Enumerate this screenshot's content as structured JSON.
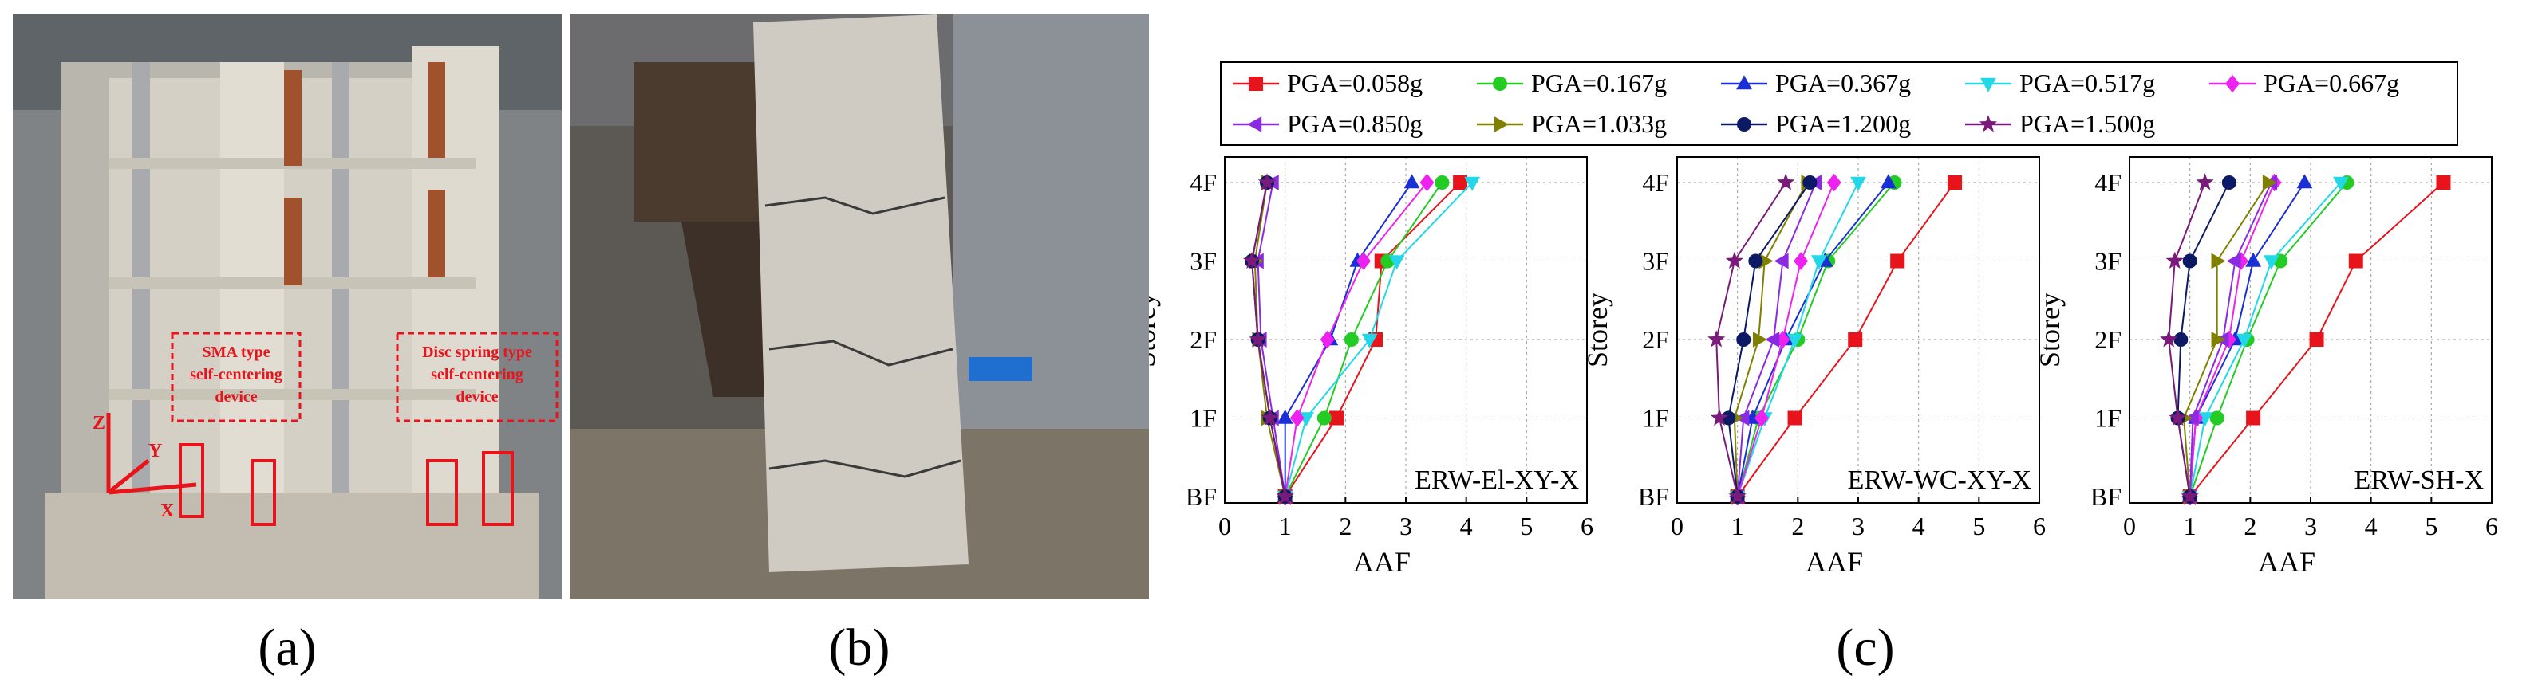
{
  "captions": {
    "a": "(a)",
    "b": "(b)",
    "c": "(c)"
  },
  "photo_a": {
    "labels": {
      "sma_line1": "SMA type",
      "sma_line2": "self-centering",
      "sma_line3": "device",
      "disc_line1": "Disc spring type",
      "disc_line2": "self-centering",
      "disc_line3": "device",
      "axis_x": "X",
      "axis_y": "Y",
      "axis_z": "Z"
    },
    "colors": {
      "annotation": "#e8141c",
      "concrete": "#c9c3b6",
      "steel": "#8d8f93",
      "copper": "#a0522d"
    }
  },
  "photo_b": {
    "colors": {
      "concrete": "#cfcbc2",
      "steel": "#4b3a2e",
      "ground": "#7d7468"
    }
  },
  "chart_data": {
    "type": "line",
    "legend": [
      {
        "name": "PGA=0.058g",
        "color": "#e8141c",
        "marker": "square"
      },
      {
        "name": "PGA=0.167g",
        "color": "#22cc22",
        "marker": "circle"
      },
      {
        "name": "PGA=0.367g",
        "color": "#1a2fd6",
        "marker": "triangle-up"
      },
      {
        "name": "PGA=0.517g",
        "color": "#22d8e8",
        "marker": "triangle-down"
      },
      {
        "name": "PGA=0.667g",
        "color": "#ee22ee",
        "marker": "diamond"
      },
      {
        "name": "PGA=0.850g",
        "color": "#8a2be2",
        "marker": "triangle-left"
      },
      {
        "name": "PGA=1.033g",
        "color": "#808000",
        "marker": "triangle-right"
      },
      {
        "name": "PGA=1.200g",
        "color": "#0c1a66",
        "marker": "hexagon"
      },
      {
        "name": "PGA=1.500g",
        "color": "#7a1a7a",
        "marker": "star"
      }
    ],
    "categories": [
      "BF",
      "1F",
      "2F",
      "3F",
      "4F"
    ],
    "xlabel": "AAF",
    "ylabel": "Storey",
    "xlim": [
      0,
      6
    ],
    "xticks": [
      "0",
      "1",
      "2",
      "3",
      "4",
      "5",
      "6"
    ],
    "grid": true,
    "legend_position": "top",
    "panels": [
      {
        "label": "ERW-El-XY-X",
        "series": [
          [
            1,
            1.85,
            2.5,
            2.6,
            3.9
          ],
          [
            1,
            1.65,
            2.1,
            2.7,
            3.6
          ],
          [
            1,
            1.0,
            1.75,
            2.2,
            3.1
          ],
          [
            1,
            1.35,
            2.4,
            2.85,
            4.1
          ],
          [
            1,
            1.2,
            1.7,
            2.3,
            3.35
          ],
          [
            1,
            0.8,
            0.6,
            0.55,
            0.8
          ],
          [
            1,
            0.7,
            0.55,
            0.5,
            0.7
          ],
          [
            1,
            0.75,
            0.55,
            0.45,
            0.7
          ],
          [
            1,
            0.75,
            0.55,
            0.45,
            0.7
          ]
        ]
      },
      {
        "label": "ERW-WC-XY-X",
        "series": [
          [
            1,
            1.95,
            2.95,
            3.65,
            4.6
          ],
          [
            1,
            1.35,
            2.0,
            2.5,
            3.6
          ],
          [
            1,
            1.25,
            1.8,
            2.45,
            3.5
          ],
          [
            1,
            1.45,
            1.95,
            2.35,
            3.0
          ],
          [
            1,
            1.4,
            1.75,
            2.05,
            2.6
          ],
          [
            1,
            1.1,
            1.6,
            1.75,
            2.3
          ],
          [
            1,
            0.95,
            1.35,
            1.45,
            2.15
          ],
          [
            1,
            0.85,
            1.1,
            1.3,
            2.2
          ],
          [
            1,
            0.7,
            0.65,
            0.95,
            1.8
          ]
        ]
      },
      {
        "label": "ERW-SH-X",
        "series": [
          [
            1,
            2.05,
            3.1,
            3.75,
            5.2
          ],
          [
            1,
            1.45,
            1.95,
            2.5,
            3.6
          ],
          [
            1,
            1.1,
            1.75,
            2.05,
            2.9
          ],
          [
            1,
            1.25,
            1.9,
            2.35,
            3.5
          ],
          [
            1,
            1.1,
            1.65,
            1.85,
            2.4
          ],
          [
            1,
            1.05,
            1.55,
            1.75,
            2.35
          ],
          [
            1,
            0.9,
            1.45,
            1.45,
            2.3
          ],
          [
            1,
            0.8,
            0.85,
            1.0,
            1.65
          ],
          [
            1,
            0.8,
            0.65,
            0.75,
            1.25
          ]
        ]
      }
    ]
  }
}
